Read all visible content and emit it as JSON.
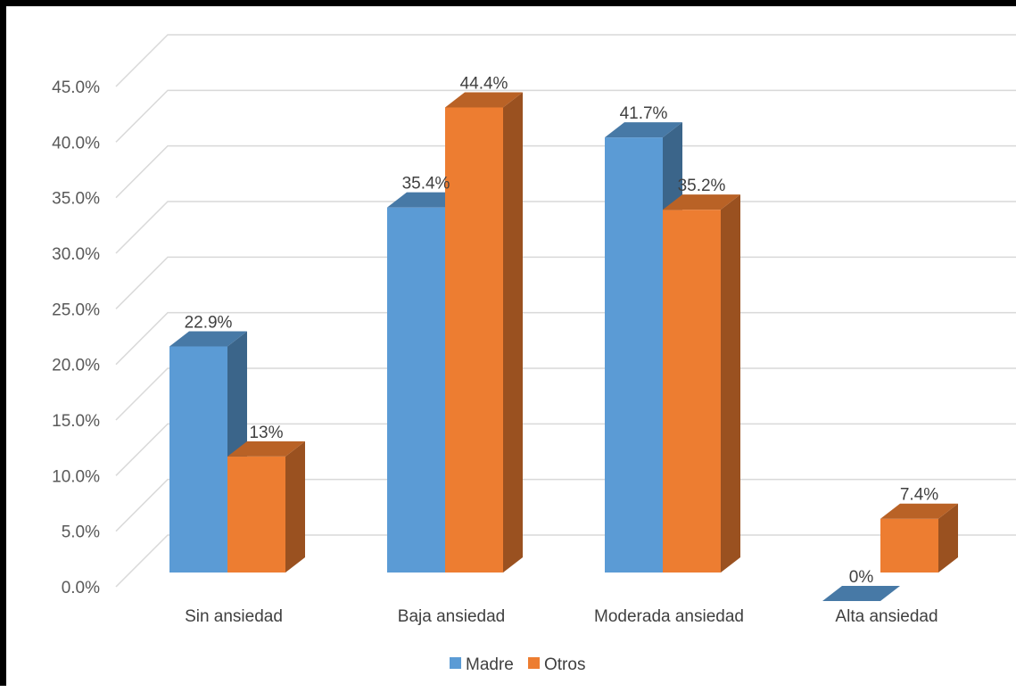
{
  "chart_data": {
    "type": "bar",
    "variant": "3d-clustered-column",
    "title": "",
    "xlabel": "",
    "ylabel": "",
    "categories": [
      "Sin ansiedad",
      "Baja ansiedad",
      "Moderada ansiedad",
      "Alta ansiedad"
    ],
    "series": [
      {
        "name": "Madre",
        "values": [
          22.9,
          35.4,
          41.7,
          0
        ],
        "labels": [
          "22.9%",
          "35.4%",
          "41.7%",
          "0%"
        ],
        "color": "#5B9BD5"
      },
      {
        "name": "Otros",
        "values": [
          13,
          44.4,
          35.2,
          7.4
        ],
        "labels": [
          "13%",
          "44.4%",
          "35.2%",
          "7.4%"
        ],
        "color": "#ED7D31"
      }
    ],
    "yticks": [
      "0.0%",
      "5.0%",
      "10.0%",
      "15.0%",
      "20.0%",
      "25.0%",
      "30.0%",
      "35.0%",
      "40.0%",
      "45.0%"
    ],
    "ylim": [
      0,
      45
    ],
    "ystep": 5,
    "grid": true,
    "legend": "bottom"
  }
}
